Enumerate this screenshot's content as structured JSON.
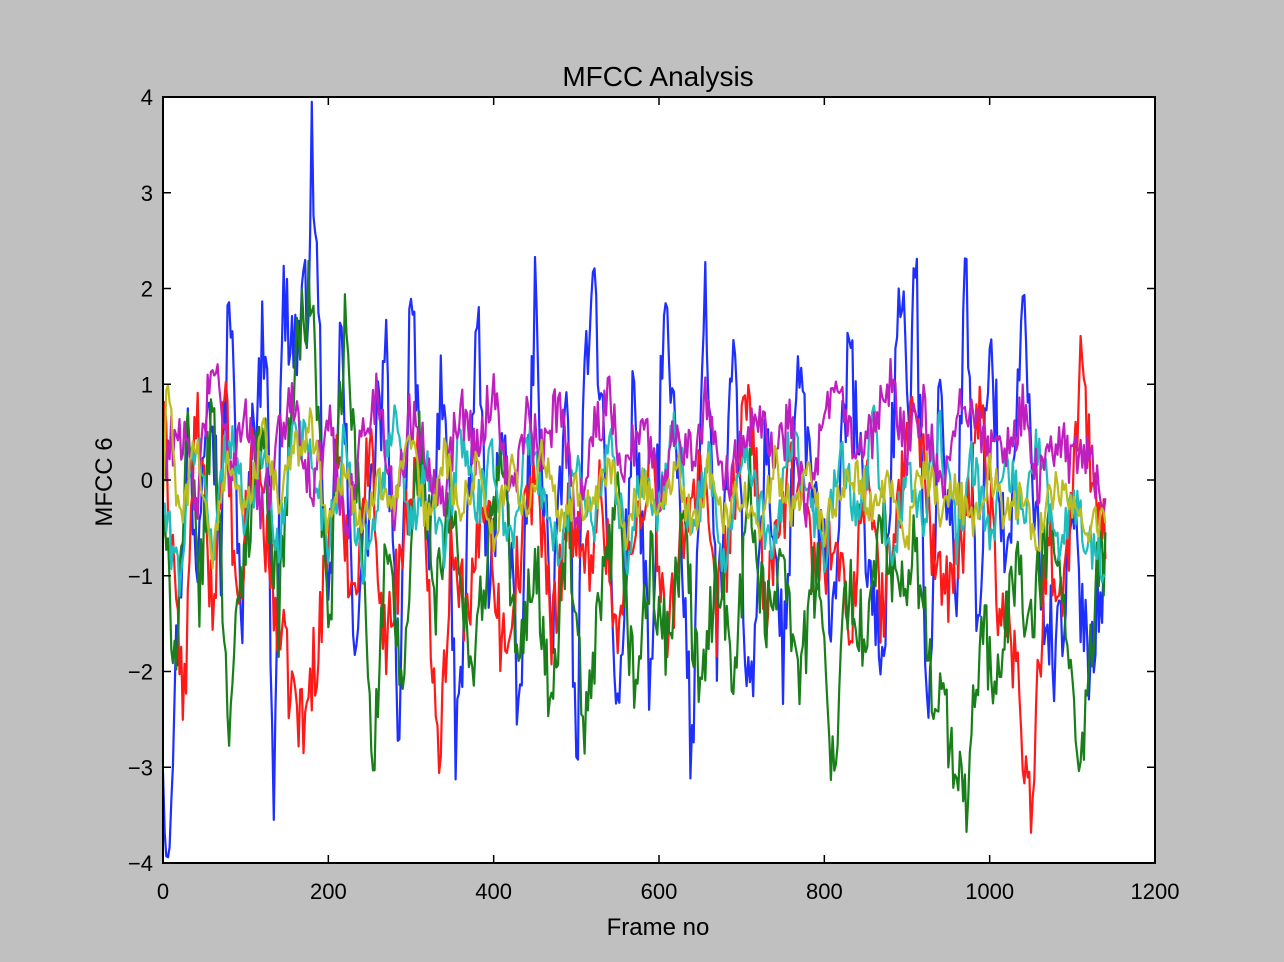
{
  "figure": {
    "background": "#c0c0c0",
    "axes_background": "#ffffff"
  },
  "chart_data": {
    "type": "line",
    "title": "MFCC Analysis",
    "xlabel": "Frame no",
    "ylabel": "MFCC 6",
    "xlim": [
      0,
      1200
    ],
    "ylim": [
      -4,
      4
    ],
    "x_ticks": [
      0,
      200,
      400,
      600,
      800,
      1000,
      1200
    ],
    "x_tick_labels": [
      "0",
      "200",
      "400",
      "600",
      "800",
      "1000",
      "1200"
    ],
    "y_ticks": [
      -4,
      -3,
      -2,
      -1,
      0,
      1,
      2,
      3,
      4
    ],
    "y_tick_labels": [
      "−4",
      "−3",
      "−2",
      "−1",
      "0",
      "1",
      "2",
      "3",
      "4"
    ],
    "grid": false,
    "legend": "none",
    "frames": 1140,
    "series": [
      {
        "color": "#1f2fff",
        "description": "highest variance; peak near frame 180 at about 3.6, minimum near frame 5 at about -3.85",
        "x": [
          0,
          5,
          20,
          30,
          40,
          55,
          70,
          80,
          95,
          110,
          125,
          133,
          145,
          160,
          175,
          180,
          190,
          200,
          215,
          230,
          250,
          270,
          285,
          300,
          320,
          340,
          355,
          365,
          380,
          395,
          410,
          430,
          450,
          470,
          490,
          500,
          510,
          520,
          535,
          550,
          570,
          590,
          605,
          620,
          640,
          655,
          670,
          690,
          710,
          730,
          750,
          770,
          790,
          810,
          830,
          850,
          870,
          890,
          905,
          910,
          925,
          940,
          960,
          970,
          985,
          1000,
          1020,
          1040,
          1060,
          1080,
          1100,
          1120,
          1135
        ],
        "values": [
          -2.8,
          -3.85,
          -1.2,
          0.5,
          -1.0,
          1.5,
          -0.8,
          2.1,
          -1.5,
          0.6,
          1.8,
          -3.5,
          1.9,
          1.4,
          1.9,
          3.6,
          1.2,
          -1.8,
          1.6,
          -1.6,
          -0.2,
          1.2,
          -2.6,
          2.2,
          -1.0,
          1.3,
          -2.9,
          -1.4,
          1.8,
          -1.4,
          0.9,
          -2.6,
          1.8,
          -1.6,
          1.0,
          -3.4,
          1.1,
          2.4,
          0.1,
          -2.6,
          1.0,
          -2.4,
          1.8,
          0.4,
          -3.0,
          2.4,
          -1.6,
          1.2,
          -2.6,
          0.5,
          -1.9,
          1.1,
          -0.4,
          -1.4,
          1.4,
          -0.6,
          -2.0,
          1.9,
          0.7,
          2.5,
          -2.4,
          0.9,
          -1.2,
          2.4,
          -1.8,
          1.6,
          -1.1,
          1.7,
          -0.9,
          -1.9,
          -0.5,
          -1.8,
          -1.0
        ]
      },
      {
        "color": "#ff1a1a",
        "description": "red series; lowest near frame 1050 at about -3.4",
        "x": [
          0,
          10,
          25,
          40,
          60,
          75,
          90,
          110,
          130,
          150,
          170,
          190,
          210,
          230,
          250,
          270,
          290,
          310,
          335,
          350,
          370,
          390,
          410,
          430,
          450,
          470,
          490,
          510,
          530,
          550,
          570,
          590,
          610,
          630,
          650,
          670,
          690,
          710,
          730,
          750,
          770,
          790,
          810,
          830,
          850,
          870,
          890,
          910,
          930,
          950,
          970,
          990,
          1010,
          1030,
          1050,
          1070,
          1090,
          1110,
          1130,
          1140
        ],
        "values": [
          0.6,
          -0.4,
          -2.5,
          0.8,
          -1.4,
          0.9,
          -1.6,
          0.5,
          -1.0,
          -2.0,
          -2.6,
          -1.5,
          0.2,
          -1.2,
          0.4,
          -1.8,
          -0.6,
          0.3,
          -2.8,
          -0.5,
          -1.6,
          0.1,
          -1.8,
          -0.9,
          0.2,
          -1.6,
          -0.3,
          -1.0,
          -0.1,
          -1.7,
          -0.6,
          0.3,
          -1.8,
          -0.4,
          0.1,
          -1.5,
          -0.2,
          0.9,
          -1.4,
          -0.3,
          0.2,
          -1.1,
          -0.5,
          -1.6,
          0.1,
          -1.4,
          -0.2,
          0.9,
          -0.6,
          -1.3,
          -0.5,
          0.8,
          -1.2,
          -1.8,
          -3.4,
          -0.6,
          -1.2,
          1.1,
          -0.4,
          -0.6
        ]
      },
      {
        "color": "#1a7f1a",
        "description": "green series; minimum near frame 970 at about -3.5",
        "x": [
          0,
          15,
          30,
          45,
          60,
          80,
          100,
          120,
          140,
          160,
          180,
          200,
          220,
          240,
          255,
          270,
          290,
          310,
          330,
          350,
          370,
          390,
          410,
          430,
          450,
          470,
          490,
          510,
          530,
          550,
          570,
          590,
          610,
          630,
          650,
          670,
          690,
          710,
          730,
          750,
          770,
          790,
          810,
          830,
          850,
          870,
          890,
          910,
          930,
          950,
          970,
          990,
          1010,
          1030,
          1050,
          1070,
          1090,
          1110,
          1130,
          1140
        ],
        "values": [
          -0.5,
          -1.8,
          0.4,
          -1.2,
          0.9,
          -2.5,
          -0.6,
          0.6,
          -1.4,
          1.3,
          2.0,
          -1.7,
          1.6,
          -0.6,
          -2.9,
          -0.8,
          -2.2,
          0.5,
          -1.3,
          -0.2,
          -2.0,
          -1.0,
          0.3,
          -2.1,
          -0.7,
          -2.5,
          -0.4,
          -2.8,
          -1.3,
          -0.3,
          -2.2,
          -0.9,
          -1.8,
          -0.5,
          -2.4,
          -0.8,
          -1.9,
          -0.1,
          -1.6,
          -0.6,
          -2.1,
          -0.9,
          -2.9,
          -1.0,
          -1.8,
          -0.4,
          -1.4,
          -0.7,
          -2.0,
          -2.6,
          -3.5,
          -1.5,
          -2.2,
          -0.9,
          -1.6,
          -0.5,
          -1.2,
          -3.3,
          -1.0,
          -0.8
        ]
      },
      {
        "color": "#1ebcbc",
        "description": "cyan series",
        "x": [
          0,
          20,
          40,
          60,
          80,
          100,
          120,
          140,
          160,
          180,
          200,
          220,
          240,
          260,
          280,
          300,
          320,
          340,
          360,
          380,
          400,
          420,
          440,
          460,
          480,
          500,
          520,
          540,
          560,
          580,
          600,
          620,
          640,
          660,
          680,
          700,
          720,
          740,
          760,
          780,
          800,
          820,
          840,
          860,
          880,
          900,
          920,
          940,
          960,
          980,
          1000,
          1020,
          1040,
          1060,
          1080,
          1100,
          1120,
          1140
        ],
        "values": [
          -0.3,
          -1.0,
          0.5,
          -0.7,
          0.6,
          -0.4,
          0.3,
          -0.8,
          0.7,
          0.2,
          -0.6,
          0.4,
          -0.9,
          -0.2,
          0.6,
          -0.5,
          0.1,
          -0.8,
          0.5,
          -0.3,
          0.2,
          -0.7,
          0.4,
          -0.1,
          -0.9,
          0.3,
          -0.5,
          0.5,
          -0.8,
          0.1,
          -0.4,
          0.6,
          -0.6,
          0.2,
          -0.9,
          0.4,
          -0.3,
          -0.7,
          0.5,
          -0.2,
          -0.8,
          0.3,
          -0.5,
          0.6,
          -0.9,
          0.1,
          -0.4,
          0.5,
          -0.6,
          0.2,
          -0.7,
          0.3,
          -0.4,
          0.5,
          -0.8,
          -0.2,
          -0.6,
          -0.9
        ]
      },
      {
        "color": "#bf1fbf",
        "description": "magenta series",
        "x": [
          0,
          20,
          40,
          60,
          80,
          100,
          120,
          140,
          160,
          180,
          200,
          220,
          240,
          260,
          280,
          300,
          320,
          340,
          360,
          380,
          400,
          420,
          440,
          460,
          480,
          500,
          520,
          540,
          560,
          580,
          600,
          620,
          640,
          660,
          680,
          700,
          720,
          740,
          760,
          780,
          800,
          820,
          840,
          860,
          880,
          900,
          920,
          940,
          960,
          980,
          1000,
          1020,
          1040,
          1060,
          1080,
          1100,
          1120,
          1140
        ],
        "values": [
          0.2,
          0.6,
          -0.3,
          1.3,
          0.1,
          0.8,
          -0.4,
          0.5,
          0.9,
          -0.2,
          0.6,
          -0.5,
          0.4,
          0.9,
          -0.3,
          0.7,
          0.2,
          -0.1,
          0.8,
          0.3,
          1.0,
          -0.2,
          0.6,
          0.2,
          0.9,
          -0.4,
          0.5,
          0.8,
          0.1,
          0.7,
          -0.2,
          0.6,
          0.3,
          0.9,
          -0.1,
          0.5,
          0.8,
          0.2,
          0.7,
          -0.3,
          0.6,
          0.9,
          0.1,
          0.5,
          1.0,
          0.3,
          0.8,
          -0.2,
          0.6,
          0.9,
          0.2,
          0.4,
          0.7,
          -0.1,
          0.5,
          0.2,
          0.3,
          -0.4
        ]
      },
      {
        "color": "#bcbc1e",
        "description": "olive/yellow series, lowest variance around 0 to -0.6",
        "x": [
          0,
          5,
          20,
          40,
          60,
          80,
          100,
          120,
          140,
          160,
          180,
          200,
          220,
          240,
          260,
          280,
          300,
          320,
          340,
          360,
          380,
          400,
          420,
          440,
          460,
          480,
          500,
          520,
          540,
          560,
          580,
          600,
          620,
          640,
          660,
          680,
          700,
          720,
          740,
          760,
          780,
          800,
          820,
          840,
          860,
          880,
          900,
          920,
          940,
          960,
          980,
          1000,
          1020,
          1040,
          1060,
          1080,
          1100,
          1120,
          1140
        ],
        "values": [
          -0.2,
          1.1,
          -0.5,
          0.4,
          -0.8,
          0.3,
          -0.4,
          0.5,
          -0.2,
          0.3,
          0.6,
          -0.5,
          0.2,
          -0.6,
          0.1,
          -0.3,
          0.4,
          -0.5,
          0.3,
          -0.4,
          0.2,
          -0.6,
          0.1,
          -0.3,
          0.3,
          -0.5,
          -0.1,
          -0.4,
          0.2,
          -0.6,
          0.0,
          -0.3,
          0.2,
          -0.5,
          0.1,
          -0.4,
          -0.1,
          -0.6,
          0.2,
          -0.3,
          0.1,
          -0.5,
          -0.2,
          0.1,
          -0.4,
          0.0,
          -0.6,
          0.2,
          -0.3,
          -0.1,
          -0.5,
          0.1,
          -0.4,
          -0.2,
          -0.6,
          0.0,
          -0.3,
          -0.5,
          -0.4
        ]
      }
    ]
  }
}
